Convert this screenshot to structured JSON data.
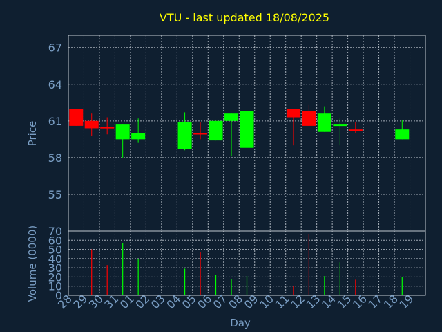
{
  "chart_data": [
    {
      "type": "candlestick",
      "title": "VTU - last updated 18/08/2025",
      "ylabel": "Price",
      "xlabel": "Day",
      "ylim": [
        52,
        68
      ],
      "y_ticks": [
        55,
        58,
        61,
        64,
        67
      ],
      "grid": true,
      "colors": {
        "up": "#00ff00",
        "down": "#ff0000",
        "title": "#ffff00",
        "axis_text": "#7a9ec4",
        "background": "#0f1f30"
      },
      "categories": [
        "28",
        "29",
        "30",
        "31",
        "01",
        "02",
        "03",
        "04",
        "05",
        "06",
        "07",
        "08",
        "09",
        "10",
        "11",
        "12",
        "13",
        "14",
        "15",
        "16",
        "17",
        "18",
        "19"
      ],
      "candles": [
        {
          "day": "28",
          "open": 62.0,
          "close": 60.6,
          "high": 62.0,
          "low": 60.6
        },
        {
          "day": "29",
          "open": 61.0,
          "close": 60.4,
          "high": 61.6,
          "low": 59.8
        },
        {
          "day": "30",
          "open": 60.5,
          "close": 60.4,
          "high": 61.3,
          "low": 59.9
        },
        {
          "day": "31",
          "open": 59.5,
          "close": 60.7,
          "high": 60.7,
          "low": 58.0
        },
        {
          "day": "01",
          "open": 59.5,
          "close": 60.0,
          "high": 61.2,
          "low": 59.2
        },
        {
          "day": "04",
          "open": 58.7,
          "close": 60.9,
          "high": 61.7,
          "low": 58.6
        },
        {
          "day": "05",
          "open": 60.0,
          "close": 59.9,
          "high": 60.9,
          "low": 59.5
        },
        {
          "day": "06",
          "open": 59.4,
          "close": 61.0,
          "high": 61.0,
          "low": 59.4
        },
        {
          "day": "07",
          "open": 61.0,
          "close": 61.6,
          "high": 61.6,
          "low": 58.1
        },
        {
          "day": "08",
          "open": 58.8,
          "close": 61.8,
          "high": 61.8,
          "low": 58.8
        },
        {
          "day": "11",
          "open": 62.0,
          "close": 61.3,
          "high": 62.0,
          "low": 59.0
        },
        {
          "day": "12",
          "open": 61.8,
          "close": 60.6,
          "high": 62.3,
          "low": 60.6
        },
        {
          "day": "13",
          "open": 60.1,
          "close": 61.6,
          "high": 62.2,
          "low": 60.1
        },
        {
          "day": "14",
          "open": 60.6,
          "close": 60.7,
          "high": 61.2,
          "low": 59.0
        },
        {
          "day": "15",
          "open": 60.3,
          "close": 60.2,
          "high": 60.9,
          "low": 60.0
        },
        {
          "day": "18",
          "open": 59.5,
          "close": 60.3,
          "high": 61.1,
          "low": 59.5
        }
      ]
    },
    {
      "type": "bar",
      "ylabel": "Volume (0000)",
      "xlabel": "Day",
      "ylim": [
        0,
        70
      ],
      "y_ticks": [
        0,
        10,
        20,
        30,
        40,
        50,
        60,
        70
      ],
      "grid": true,
      "categories": [
        "28",
        "29",
        "30",
        "31",
        "01",
        "02",
        "03",
        "04",
        "05",
        "06",
        "07",
        "08",
        "09",
        "10",
        "11",
        "12",
        "13",
        "14",
        "15",
        "16",
        "17",
        "18",
        "19"
      ],
      "volumes": [
        {
          "day": "28",
          "value": 0,
          "direction": "down"
        },
        {
          "day": "29",
          "value": 50,
          "direction": "down"
        },
        {
          "day": "30",
          "value": 33,
          "direction": "down"
        },
        {
          "day": "31",
          "value": 57,
          "direction": "up"
        },
        {
          "day": "01",
          "value": 40,
          "direction": "up"
        },
        {
          "day": "04",
          "value": 29,
          "direction": "up"
        },
        {
          "day": "05",
          "value": 47,
          "direction": "down"
        },
        {
          "day": "06",
          "value": 22,
          "direction": "up"
        },
        {
          "day": "07",
          "value": 18,
          "direction": "up"
        },
        {
          "day": "08",
          "value": 21,
          "direction": "up"
        },
        {
          "day": "11",
          "value": 10,
          "direction": "down"
        },
        {
          "day": "12",
          "value": 67,
          "direction": "down"
        },
        {
          "day": "13",
          "value": 21,
          "direction": "up"
        },
        {
          "day": "14",
          "value": 36,
          "direction": "up"
        },
        {
          "day": "15",
          "value": 17,
          "direction": "down"
        },
        {
          "day": "18",
          "value": 20,
          "direction": "up"
        }
      ]
    }
  ]
}
